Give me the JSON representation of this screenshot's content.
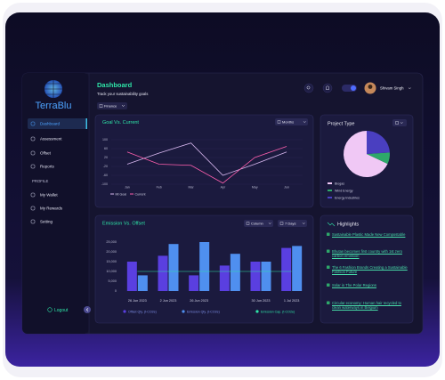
{
  "sidebar": {
    "logo": "TerraBlu",
    "nav": [
      "Dashboard",
      "Assessment",
      "Offset",
      "Reports"
    ],
    "section": "PROFILE",
    "profile_nav": [
      "My Wallet",
      "My Rewards",
      "Setting"
    ],
    "logout": "Logout"
  },
  "header": {
    "title": "Dashboard",
    "subtitle": "Track your sustainability goals",
    "filter": "Finance",
    "user": "Shivam Singh"
  },
  "chart_data": [
    {
      "type": "line",
      "title": "Goal Vs. Current",
      "controls": [
        "Months"
      ],
      "categories": [
        "Jan",
        "Feb",
        "Mar",
        "Apr",
        "May",
        "Jun"
      ],
      "series": [
        {
          "name": "Mt Goal",
          "color": "#d9b8f0",
          "values": [
            -10,
            40,
            85,
            -60,
            -10,
            45
          ]
        },
        {
          "name": "Current",
          "color": "#ff5fae",
          "values": [
            45,
            -10,
            -15,
            -95,
            20,
            70
          ]
        }
      ],
      "ylim": [
        -100,
        100
      ],
      "yticks": [
        100,
        60,
        20,
        -20,
        -60,
        -100
      ],
      "grid": true
    },
    {
      "type": "pie",
      "title": "Project Type",
      "categories": [
        "Biogas",
        "Wind Energy",
        "Energy Industries"
      ],
      "values": [
        68,
        8,
        24
      ],
      "colors": [
        "#f0c8f5",
        "#2ea86a",
        "#4a3fc0"
      ]
    },
    {
      "type": "bar",
      "title": "Emission Vs. Offset",
      "controls": [
        "Column",
        "7 Days"
      ],
      "categories": [
        "26 Jun 2023",
        "2 Jun 2023",
        "26 Jun 2023",
        null,
        "30 Jun 2023",
        "1 Jul 2023"
      ],
      "series": [
        {
          "name": "Offset Qty. (t-CO2e)",
          "color": "#5a3fe0",
          "values": [
            15000,
            18000,
            8000,
            13000,
            15000,
            22000
          ]
        },
        {
          "name": "Emission Qty. (t-CO2e)",
          "color": "#4f8fef",
          "values": [
            8000,
            24000,
            25000,
            19000,
            15000,
            23000
          ]
        },
        {
          "name": "Emission Cap. (t-CO2e)",
          "color": "#2ee6a8",
          "type": "line",
          "values": [
            10000,
            10000,
            10000,
            10000,
            10000,
            10000
          ]
        }
      ],
      "ylim": [
        0,
        25000
      ],
      "yticks": [
        {
          "value": 25000,
          "label": "25,000"
        },
        {
          "value": 20000,
          "label": "20,000"
        },
        {
          "value": 15000,
          "label": "15,000"
        },
        {
          "value": 10000,
          "label": "10,000"
        },
        {
          "value": 5000,
          "label": "5,000"
        },
        0
      ],
      "grid": false
    }
  ],
  "highlights": {
    "title": "Highlights",
    "items": [
      "Sustainable Plastic Made New Compostable",
      "Bhutan becomes first country with 1st zero carbon emission",
      "The 6 Fashion Brands Creating a Sustainable Fashion Future",
      "Solar in The Polar Regions",
      "Circular economy: Human hair recycled to clean waterways in Belgium"
    ]
  }
}
